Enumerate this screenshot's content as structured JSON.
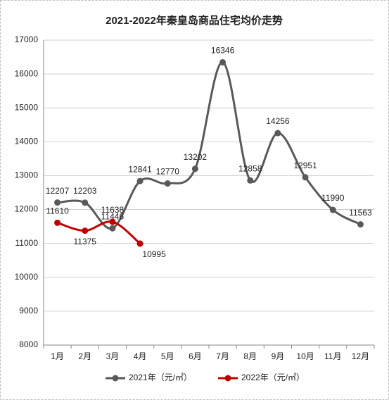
{
  "chart_data": {
    "type": "line",
    "title": "2021-2022年秦皇岛商品住宅均价走势",
    "categories": [
      "1月",
      "2月",
      "3月",
      "4月",
      "5月",
      "6月",
      "7月",
      "8月",
      "9月",
      "10月",
      "11月",
      "12月"
    ],
    "series": [
      {
        "name": "2021年（元/㎡）",
        "color": "#595959",
        "values": [
          12207,
          12203,
          11446,
          12841,
          12770,
          13202,
          16346,
          12858,
          14256,
          12951,
          11990,
          11563
        ]
      },
      {
        "name": "2022年（元/㎡）",
        "color": "#c00000",
        "values": [
          11610,
          11375,
          11638,
          10995,
          null,
          null,
          null,
          null,
          null,
          null,
          null,
          null
        ]
      }
    ],
    "ylim": [
      8000,
      17000
    ],
    "yticks": [
      8000,
      9000,
      10000,
      11000,
      12000,
      13000,
      14000,
      15000,
      16000,
      17000
    ],
    "grid": true,
    "legend": "bottom",
    "smooth": true
  }
}
